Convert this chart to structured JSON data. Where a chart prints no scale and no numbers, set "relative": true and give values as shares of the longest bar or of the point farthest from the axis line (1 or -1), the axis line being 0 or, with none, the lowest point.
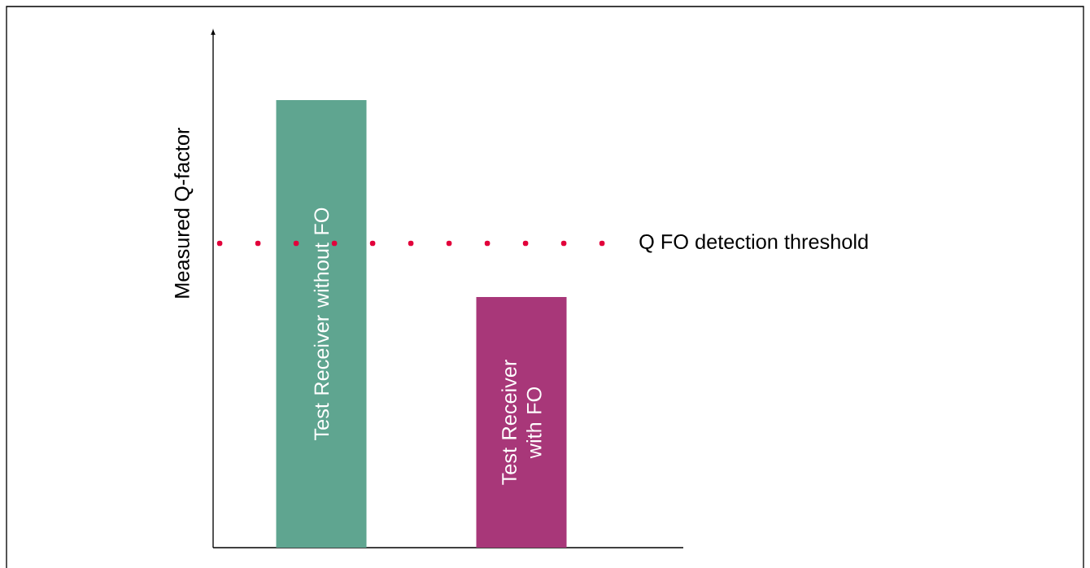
{
  "chart_data": {
    "type": "bar",
    "relative": true,
    "ylabel": "Measured Q-factor",
    "categories": [
      "Test Receiver without FO",
      "Test Receiver with FO"
    ],
    "values": [
      1,
      0.56
    ],
    "colors": [
      "#5fa590",
      "#a83779"
    ],
    "ref_lines": [
      {
        "axis": "y",
        "value": 0.68,
        "label": "Q FO detection threshold",
        "color": "#e2003b",
        "line_style": "dotted"
      }
    ]
  }
}
